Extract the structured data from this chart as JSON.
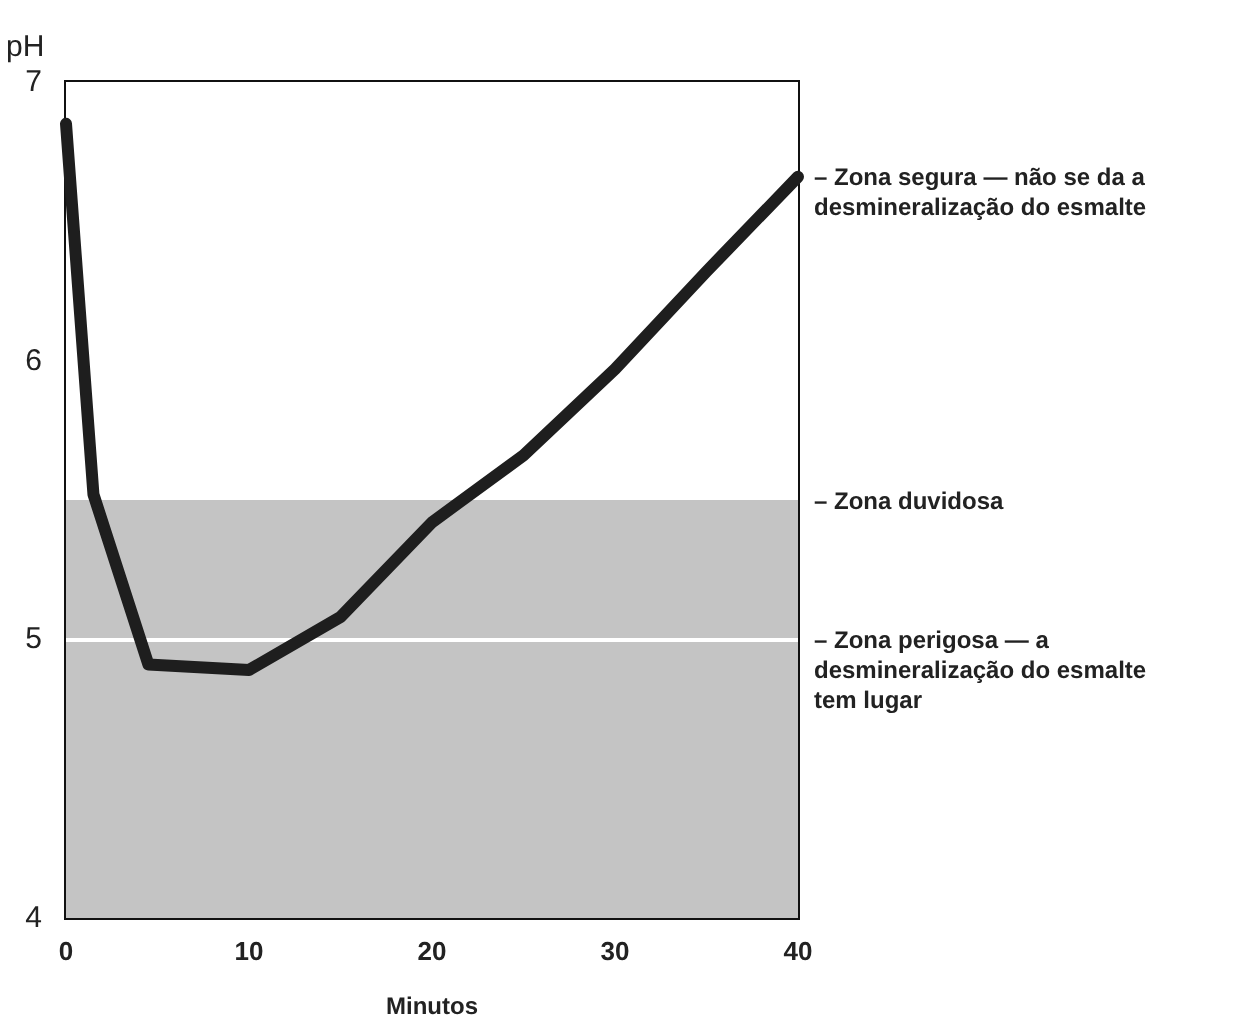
{
  "chart_data": {
    "type": "line",
    "xlabel": "Minutos",
    "ylabel": "pH",
    "x": [
      0,
      1.5,
      4.5,
      10,
      15,
      20,
      25,
      30,
      35,
      40
    ],
    "values": [
      6.85,
      5.52,
      4.91,
      4.89,
      5.08,
      5.42,
      5.66,
      5.97,
      6.32,
      6.66
    ],
    "color": "#1e1e1e",
    "xlim": [
      0,
      40
    ],
    "xticks": [
      0,
      10,
      20,
      30,
      40
    ],
    "ylim": [
      4,
      7
    ],
    "yticks": [
      4,
      5,
      6,
      7
    ],
    "grid": false,
    "marker": "none",
    "line_style": "solid",
    "bands": [
      {
        "axis": "y",
        "from": 5.5,
        "to": 7,
        "color": "#ffffff",
        "label": "– Zona segura — não se da a desmineralização do esmalte"
      },
      {
        "axis": "y",
        "from": 5,
        "to": 5.5,
        "color": "#c4c4c4",
        "label": "– Zona duvidosa"
      },
      {
        "axis": "y",
        "from": 4,
        "to": 5,
        "color": "#c4c4c4",
        "label": "– Zona perigosa — a desmineralização do esmalte tem lugar"
      }
    ],
    "ref_lines": [
      {
        "axis": "y",
        "value": 5,
        "color": "#ffffff"
      }
    ]
  }
}
